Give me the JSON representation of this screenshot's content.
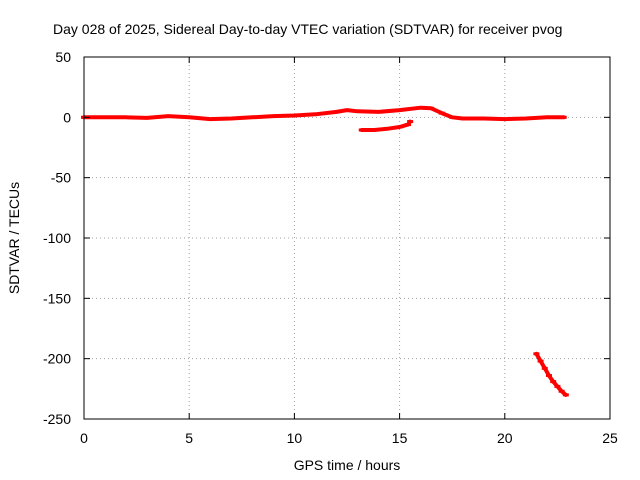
{
  "chart_data": {
    "type": "line",
    "title": "Day 028 of 2025, Sidereal Day-to-day VTEC variation (SDTVAR) for receiver pvog",
    "xlabel": "GPS time / hours",
    "ylabel": "SDTVAR / TECUs",
    "xlim": [
      0,
      25
    ],
    "ylim": [
      -250,
      50
    ],
    "xticks": [
      0,
      5,
      10,
      15,
      20,
      25
    ],
    "yticks": [
      50,
      0,
      -50,
      -100,
      -150,
      -200,
      -250
    ],
    "xtick_labels": [
      "0",
      "5",
      "10",
      "15",
      "20",
      "25"
    ],
    "ytick_labels": [
      "50",
      "0",
      "-50",
      "-100",
      "-150",
      "-200",
      "-250"
    ],
    "grid": true,
    "series_color": "#ff0000",
    "series": [
      {
        "name": "main-track",
        "points": [
          [
            0,
            0
          ],
          [
            1,
            0
          ],
          [
            2,
            0
          ],
          [
            3,
            -0.5
          ],
          [
            4,
            1
          ],
          [
            5,
            0
          ],
          [
            6,
            -1.5
          ],
          [
            7,
            -1
          ],
          [
            8,
            0
          ],
          [
            9,
            1
          ],
          [
            10,
            1.5
          ],
          [
            11,
            2.5
          ],
          [
            12,
            4.5
          ],
          [
            12.5,
            6
          ],
          [
            13,
            5
          ],
          [
            14,
            4.5
          ],
          [
            15,
            6
          ],
          [
            16,
            8
          ],
          [
            16.5,
            7.5
          ],
          [
            17,
            3.5
          ],
          [
            17.5,
            0
          ],
          [
            18,
            -1
          ],
          [
            19,
            -1
          ],
          [
            20,
            -1.5
          ],
          [
            21,
            -1
          ],
          [
            22,
            0
          ],
          [
            22.8,
            0
          ]
        ]
      },
      {
        "name": "short-arc",
        "points": [
          [
            13.2,
            -10.5
          ],
          [
            13.8,
            -10.5
          ],
          [
            14.4,
            -9.5
          ],
          [
            15,
            -8
          ],
          [
            15.4,
            -6
          ],
          [
            15.5,
            -3.5
          ]
        ]
      },
      {
        "name": "late-drop",
        "points": [
          [
            21.5,
            -196
          ],
          [
            21.7,
            -202
          ],
          [
            21.9,
            -208
          ],
          [
            22.1,
            -214
          ],
          [
            22.3,
            -219
          ],
          [
            22.5,
            -223
          ],
          [
            22.7,
            -227
          ],
          [
            22.9,
            -230
          ]
        ]
      }
    ]
  }
}
